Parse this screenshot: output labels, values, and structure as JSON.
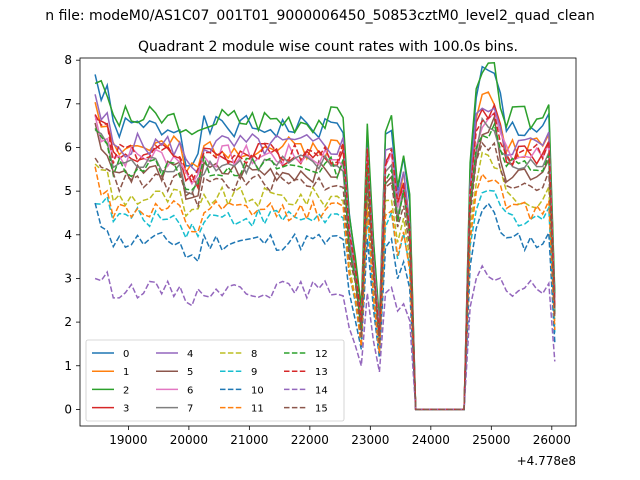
{
  "chart_data": {
    "type": "line",
    "suptitle": "n file: modeM0/AS1C07_001T01_9000006450_50853cztM0_level2_quad_clean",
    "title": "Quadrant 2 module wise count rates with 100.0s bins.",
    "xlabel": "",
    "ylabel": "",
    "x_offset_label": "+4.778e8",
    "xlim": [
      18200,
      26400
    ],
    "ylim": [
      -0.38,
      8.05
    ],
    "x_ticks": [
      19000,
      20000,
      21000,
      22000,
      23000,
      24000,
      25000,
      26000
    ],
    "x_tick_labels": [
      "19000",
      "20000",
      "21000",
      "22000",
      "23000",
      "24000",
      "25000",
      "26000"
    ],
    "y_ticks": [
      0,
      1,
      2,
      3,
      4,
      5,
      6,
      7,
      8
    ],
    "y_tick_labels": [
      "0",
      "1",
      "2",
      "3",
      "4",
      "5",
      "6",
      "7",
      "8"
    ],
    "grid": false,
    "legend_placement": "lower-left",
    "legend_columns": 4,
    "x": [
      18450,
      18550,
      18650,
      18750,
      18850,
      18950,
      19050,
      19150,
      19250,
      19350,
      19450,
      19550,
      19650,
      19750,
      19850,
      19950,
      20050,
      20150,
      20250,
      20350,
      20450,
      20550,
      20650,
      20750,
      20850,
      20950,
      21050,
      21150,
      21250,
      21350,
      21450,
      21550,
      21650,
      21750,
      21850,
      21950,
      22050,
      22150,
      22250,
      22350,
      22450,
      22550,
      22650,
      22750,
      22850,
      22950,
      23050,
      23150,
      23250,
      23350,
      23450,
      23550,
      23650,
      23750,
      23850,
      23950,
      24050,
      24150,
      24250,
      24350,
      24450,
      24550,
      24650,
      24750,
      24850,
      24950,
      25050,
      25150,
      25250,
      25350,
      25450,
      25550,
      25650,
      25750,
      25850,
      25950,
      26050
    ],
    "series": [
      {
        "name": "0",
        "color": "#1f77b4",
        "dash": "solid",
        "base": 6.45,
        "bump": 1.2,
        "ripple": 0.28,
        "seed": 1
      },
      {
        "name": "1",
        "color": "#ff7f0e",
        "dash": "solid",
        "base": 6.0,
        "bump": 1.1,
        "ripple": 0.26,
        "seed": 2
      },
      {
        "name": "2",
        "color": "#2ca02c",
        "dash": "solid",
        "base": 6.65,
        "bump": 1.0,
        "ripple": 0.32,
        "seed": 3
      },
      {
        "name": "3",
        "color": "#d62728",
        "dash": "solid",
        "base": 5.85,
        "bump": 1.05,
        "ripple": 0.27,
        "seed": 4
      },
      {
        "name": "4",
        "color": "#9467bd",
        "dash": "solid",
        "base": 6.05,
        "bump": 0.95,
        "ripple": 0.28,
        "seed": 5
      },
      {
        "name": "5",
        "color": "#8c564b",
        "dash": "solid",
        "base": 5.45,
        "bump": 1.0,
        "ripple": 0.25,
        "seed": 6
      },
      {
        "name": "6",
        "color": "#e377c2",
        "dash": "solid",
        "base": 5.8,
        "bump": 0.9,
        "ripple": 0.27,
        "seed": 7
      },
      {
        "name": "7",
        "color": "#7f7f7f",
        "dash": "solid",
        "base": 5.6,
        "bump": 0.85,
        "ripple": 0.25,
        "seed": 8
      },
      {
        "name": "8",
        "color": "#bcbd22",
        "dash": "dashed",
        "base": 4.85,
        "bump": 0.9,
        "ripple": 0.24,
        "seed": 9
      },
      {
        "name": "9",
        "color": "#17becf",
        "dash": "dashed",
        "base": 4.4,
        "bump": 0.5,
        "ripple": 0.22,
        "seed": 10
      },
      {
        "name": "10",
        "color": "#1f77b4",
        "dash": "dashed",
        "base": 3.85,
        "bump": 0.7,
        "ripple": 0.22,
        "seed": 11
      },
      {
        "name": "11",
        "color": "#ff7f0e",
        "dash": "dashed",
        "base": 4.55,
        "bump": 0.9,
        "ripple": 0.23,
        "seed": 12
      },
      {
        "name": "12",
        "color": "#2ca02c",
        "dash": "dashed",
        "base": 5.55,
        "bump": 0.85,
        "ripple": 0.24,
        "seed": 13
      },
      {
        "name": "13",
        "color": "#d62728",
        "dash": "dashed",
        "base": 5.85,
        "bump": 0.95,
        "ripple": 0.25,
        "seed": 14
      },
      {
        "name": "14",
        "color": "#9467bd",
        "dash": "dashed",
        "base": 2.75,
        "bump": 0.35,
        "ripple": 0.2,
        "seed": 15
      },
      {
        "name": "15",
        "color": "#8c564b",
        "dash": "dashed",
        "base": 5.2,
        "bump": 0.75,
        "ripple": 0.23,
        "seed": 16
      }
    ]
  }
}
